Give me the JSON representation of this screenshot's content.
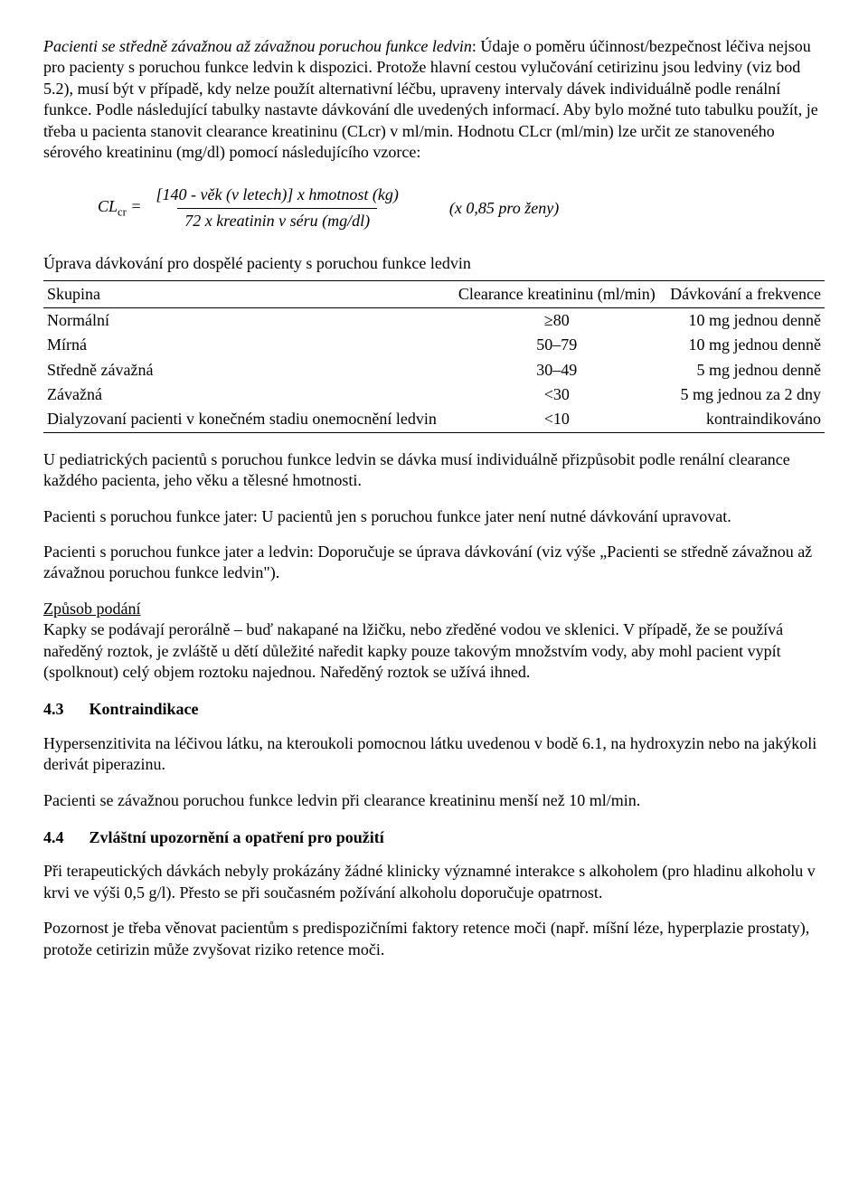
{
  "p1": {
    "lead_italic": "Pacienti se středně závažnou až závažnou poruchou funkce ledvin",
    "body": ":\nÚdaje o poměru účinnost/bezpečnost léčiva nejsou pro pacienty s poruchou funkce ledvin k dispozici. Protože hlavní cestou vylučování cetirizinu jsou ledviny (viz bod 5.2), musí být v případě, kdy nelze použít alternativní léčbu, upraveny intervaly dávek individuálně podle renální funkce. Podle následující tabulky nastavte dávkování dle uvedených informací. Aby bylo možné tuto tabulku použít, je třeba u pacienta stanovit clearance kreatininu (CLcr) v ml/min. Hodnotu CLcr (ml/min) lze určit ze stanoveného sérového kreatininu (mg/dl) pomocí následujícího vzorce:"
  },
  "formula": {
    "lhs": "CL",
    "lhs_sub": "cr",
    "eq": " = ",
    "numer": "[140 - věk (v letech)]  x hmotnost (kg)",
    "denom": "72 x kreatinin v séru (mg/dl)",
    "note": "(x 0,85 pro ženy)"
  },
  "table": {
    "caption": "Úprava dávkování pro dospělé pacienty s poruchou funkce ledvin",
    "columns": [
      "Skupina",
      "Clearance kreatininu (ml/min)",
      "Dávkování a frekvence"
    ],
    "col_align": [
      "left",
      "center",
      "right"
    ],
    "rows": [
      [
        "Normální",
        "≥80",
        "10 mg jednou denně"
      ],
      [
        "Mírná",
        "50–79",
        "10 mg jednou denně"
      ],
      [
        "Středně závažná",
        "30–49",
        "5 mg jednou denně"
      ],
      [
        "Závažná",
        "<30",
        "5 mg jednou za 2 dny"
      ],
      [
        "Dialyzovaní pacienti v konečném stadiu onemocnění ledvin",
        "<10",
        "kontraindikováno"
      ]
    ]
  },
  "p2": "U pediatrických pacientů s poruchou funkce ledvin se dávka musí individuálně přizpůsobit podle renální clearance každého pacienta, jeho věku a tělesné hmotnosti.",
  "p3": "Pacienti s poruchou funkce jater: U pacientů jen s poruchou funkce jater není nutné dávkování upravovat.",
  "p4": "Pacienti s poruchou funkce jater a ledvin: Doporučuje se úprava dávkování (viz výše „Pacienti se středně závažnou až závažnou poruchou funkce ledvin\").",
  "p5": {
    "heading_underline": "Způsob podání",
    "body": "Kapky se podávají perorálně – buď nakapané na lžičku, nebo zředěné vodou ve sklenici. V případě, že se používá naředěný roztok, je zvláště u dětí důležité naředit kapky pouze takovým množstvím vody, aby mohl pacient vypít (spolknout) celý objem roztoku najednou. Naředěný roztok se užívá ihned."
  },
  "s43": {
    "num": "4.3",
    "title": "Kontraindikace",
    "p1": "Hypersenzitivita na léčivou látku, na kteroukoli pomocnou látku uvedenou v bodě 6.1, na hydroxyzin nebo na jakýkoli derivát piperazinu.",
    "p2": "Pacienti se závažnou poruchou funkce ledvin při clearance kreatininu menší než 10 ml/min."
  },
  "s44": {
    "num": "4.4",
    "title": "Zvláštní upozornění a opatření pro použití",
    "p1": "Při terapeutických dávkách nebyly prokázány žádné klinicky významné interakce s alkoholem (pro hladinu alkoholu v krvi ve výši 0,5 g/l). Přesto se při současném požívání alkoholu doporučuje opatrnost.",
    "p2": "Pozornost je třeba věnovat pacientům s predispozičními faktory retence moči (např. míšní léze, hyperplazie prostaty), protože cetirizin může zvyšovat riziko retence moči."
  }
}
